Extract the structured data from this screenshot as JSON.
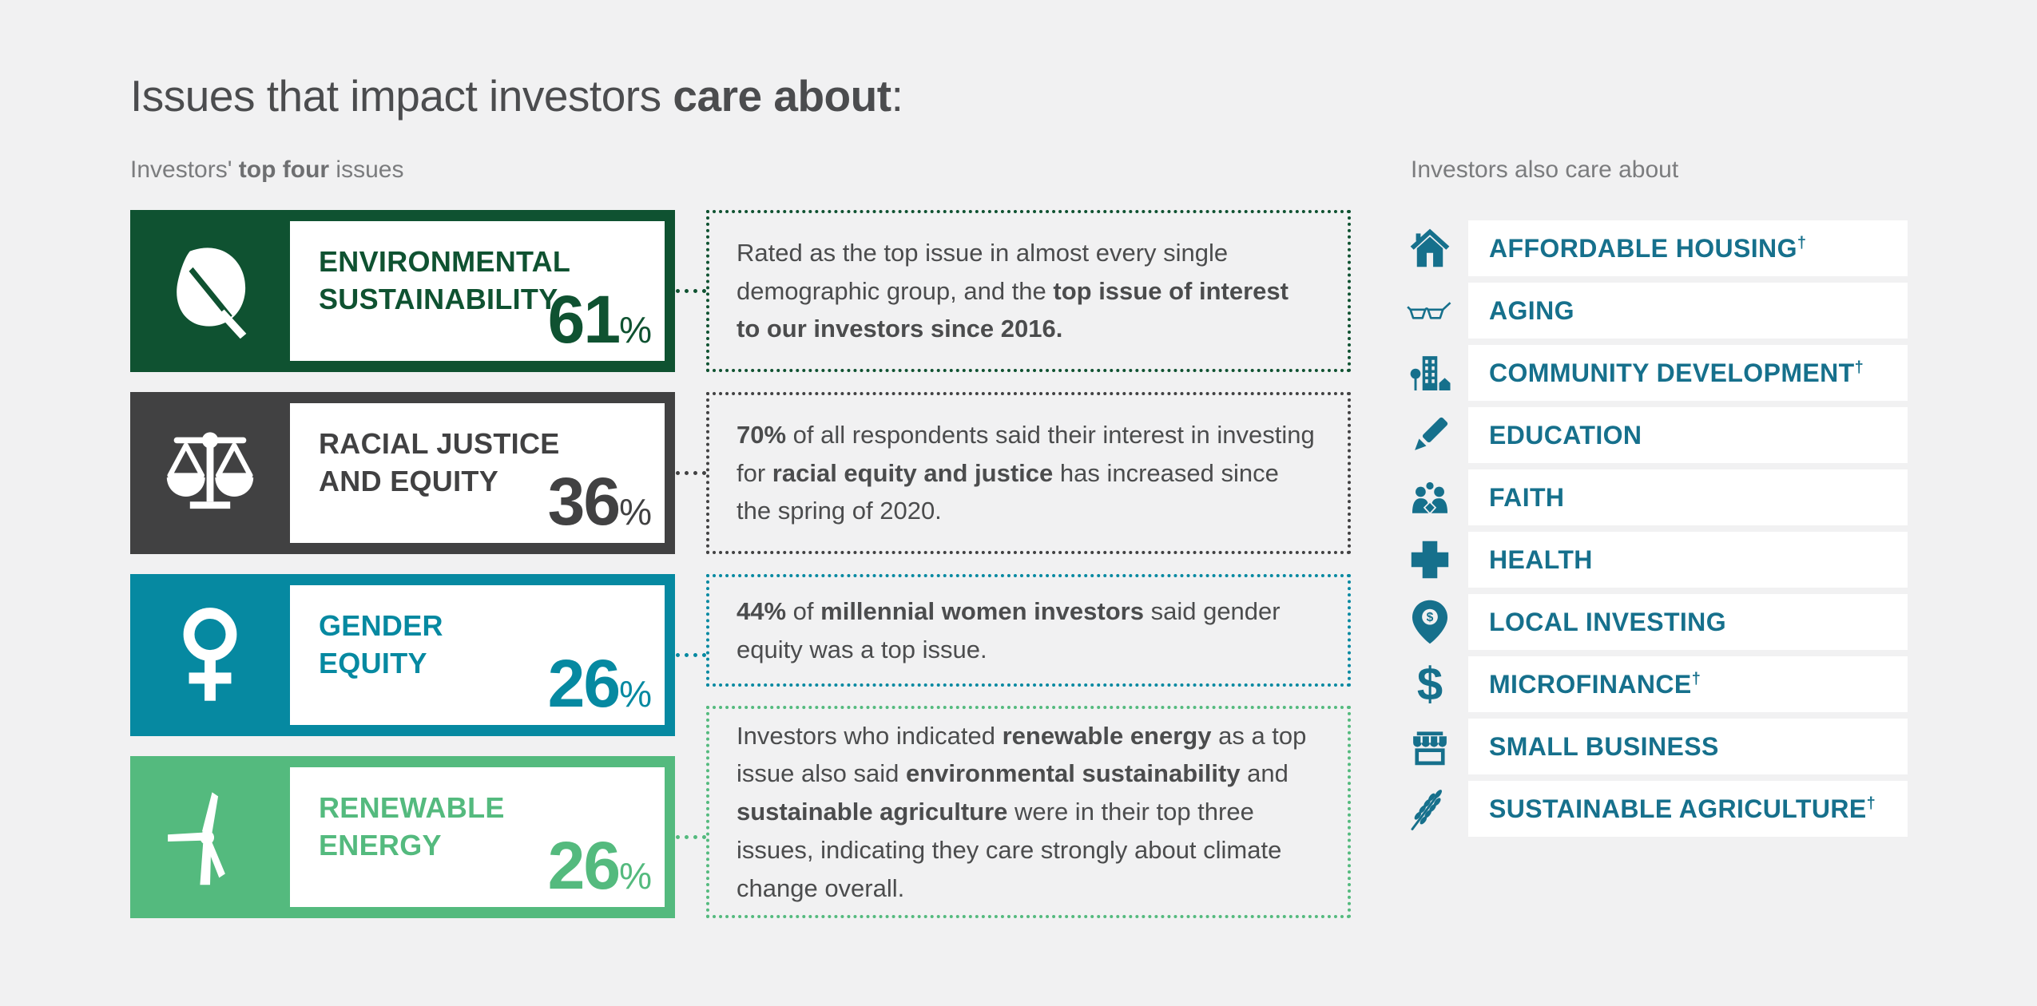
{
  "colors": {
    "background": "#f1f1f2",
    "text_dark": "#4b4c4d",
    "text_gray": "#7b7c7e",
    "right_list_teal": "#16708c",
    "row_background": "#ffffff"
  },
  "header": {
    "title_segments": [
      {
        "t": "Issues that impact investors ",
        "b": false
      },
      {
        "t": "care about",
        "b": true
      },
      {
        "t": ":",
        "b": false
      }
    ]
  },
  "left": {
    "subtitle_segments": [
      {
        "t": "Investors' ",
        "b": false
      },
      {
        "t": "top four",
        "b": true
      },
      {
        "t": " issues",
        "b": false
      }
    ],
    "cards": [
      {
        "icon": "leaf-icon",
        "color": "#0f5231",
        "title_lines": [
          "ENVIRONMENTAL",
          "SUSTAINABILITY"
        ],
        "percent": "61",
        "percent_unit": "%",
        "note_segments": [
          {
            "t": "Rated as the top issue in almost every single demographic group, and the ",
            "b": false
          },
          {
            "t": "top issue of interest to our investors since 2016.",
            "b": true
          }
        ]
      },
      {
        "icon": "scales-icon",
        "color": "#414142",
        "title_lines": [
          "RACIAL JUSTICE",
          "AND EQUITY"
        ],
        "percent": "36",
        "percent_unit": "%",
        "note_segments": [
          {
            "t": "70%",
            "b": true
          },
          {
            "t": " of all respondents said their interest in investing for ",
            "b": false
          },
          {
            "t": "racial equity and justice",
            "b": true
          },
          {
            "t": " has increased since the spring of 2020.",
            "b": false
          }
        ]
      },
      {
        "icon": "female-icon",
        "color": "#0689a1",
        "title_lines": [
          "GENDER",
          "EQUITY"
        ],
        "percent": "26",
        "percent_unit": "%",
        "note_segments": [
          {
            "t": "44%",
            "b": true
          },
          {
            "t": " of ",
            "b": false
          },
          {
            "t": "millennial women investors",
            "b": true
          },
          {
            "t": " said gender equity was a top issue.",
            "b": false
          }
        ]
      },
      {
        "icon": "wind-turbine-icon",
        "color": "#54ba7e",
        "title_lines": [
          "RENEWABLE",
          "ENERGY"
        ],
        "percent": "26",
        "percent_unit": "%",
        "note_segments": [
          {
            "t": "Investors who indicated ",
            "b": false
          },
          {
            "t": "renewable energy",
            "b": true
          },
          {
            "t": " as a top issue also said ",
            "b": false
          },
          {
            "t": "environmental sustainability",
            "b": true
          },
          {
            "t": " and ",
            "b": false
          },
          {
            "t": "sustainable agriculture",
            "b": true
          },
          {
            "t": " were in their top three issues, indicating they care strongly about climate change overall.",
            "b": false
          }
        ]
      }
    ]
  },
  "right": {
    "subtitle": "Investors also care about",
    "items": [
      {
        "icon": "house-icon",
        "label": "AFFORDABLE HOUSING",
        "dagger": "†"
      },
      {
        "icon": "eyeglasses-icon",
        "label": "AGING",
        "dagger": ""
      },
      {
        "icon": "community-icon",
        "label": "COMMUNITY DEVELOPMENT",
        "dagger": "†"
      },
      {
        "icon": "pencil-icon",
        "label": "EDUCATION",
        "dagger": ""
      },
      {
        "icon": "people-icon",
        "label": "FAITH",
        "dagger": ""
      },
      {
        "icon": "medical-cross-icon",
        "label": "HEALTH",
        "dagger": ""
      },
      {
        "icon": "map-pin-dollar-icon",
        "label": "LOCAL INVESTING",
        "dagger": ""
      },
      {
        "icon": "dollar-icon",
        "label": "MICROFINANCE",
        "dagger": "†"
      },
      {
        "icon": "storefront-icon",
        "label": "SMALL BUSINESS",
        "dagger": ""
      },
      {
        "icon": "wheat-icon",
        "label": "SUSTAINABLE AGRICULTURE",
        "dagger": "†"
      }
    ]
  },
  "chart_data": {
    "type": "table",
    "title": "Issues that impact investors care about:",
    "subtitle_left": "Investors' top four issues",
    "subtitle_right": "Investors also care about",
    "categories": [
      "Environmental Sustainability",
      "Racial Justice and Equity",
      "Gender Equity",
      "Renewable Energy"
    ],
    "values": [
      61,
      36,
      26,
      26
    ],
    "unit": "%",
    "notes": [
      "Rated as the top issue in almost every single demographic group, and the top issue of interest to our investors since 2016.",
      "70% of all respondents said their interest in investing for racial equity and justice has increased since the spring of 2020.",
      "44% of millennial women investors said gender equity was a top issue.",
      "Investors who indicated renewable energy as a top issue also said environmental sustainability and sustainable agriculture were in their top three issues, indicating they care strongly about climate change overall."
    ],
    "secondary_list": [
      "Affordable Housing†",
      "Aging",
      "Community Development†",
      "Education",
      "Faith",
      "Health",
      "Local Investing",
      "Microfinance†",
      "Small Business",
      "Sustainable Agriculture†"
    ]
  }
}
